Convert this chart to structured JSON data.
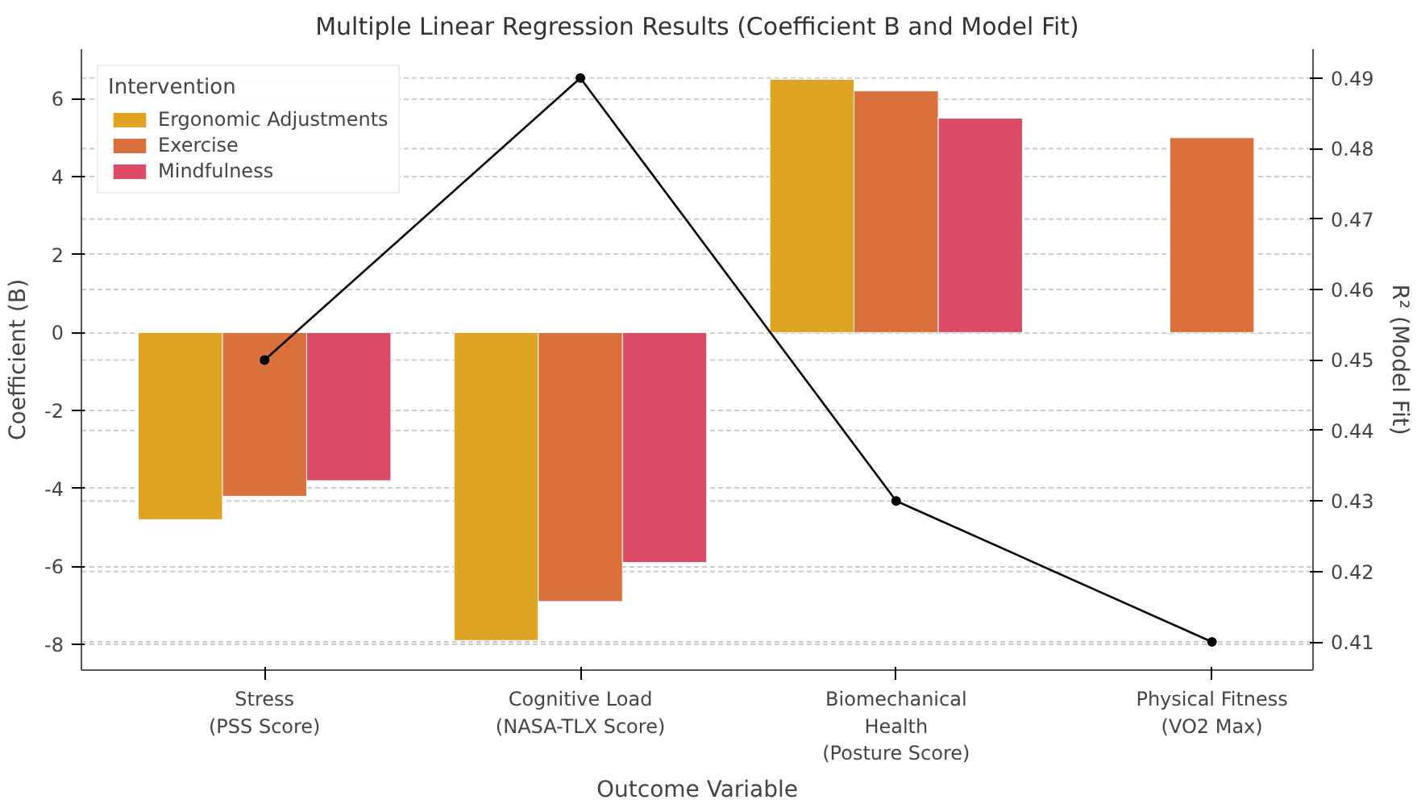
{
  "chart_data": {
    "type": "bar",
    "title": "Multiple Linear Regression Results (Coefficient B and Model Fit)",
    "xlabel": "Outcome Variable",
    "ylabel": "Coefficient (B)",
    "y2label": "R² (Model Fit)",
    "legend_title": "Intervention",
    "categories": [
      "Stress\n(PSS Score)",
      "Cognitive Load\n(NASA-TLX Score)",
      "Biomechanical\nHealth\n(Posture Score)",
      "Physical Fitness\n(VO2 Max)"
    ],
    "series": [
      {
        "name": "Ergonomic Adjustments",
        "color": "#dfa424",
        "values": [
          -4.8,
          -7.9,
          6.5,
          null
        ]
      },
      {
        "name": "Exercise",
        "color": "#da703b",
        "values": [
          -4.2,
          -6.9,
          6.2,
          5.0
        ]
      },
      {
        "name": "Mindfulness",
        "color": "#dc4b67",
        "values": [
          -3.8,
          -5.9,
          5.5,
          null
        ]
      },
      {
        "type": "line",
        "axis": "y2",
        "color": "#000000",
        "marker": "circle",
        "values": [
          0.45,
          0.49,
          0.43,
          0.41
        ]
      }
    ],
    "ylim": [
      -8.66,
      7.27
    ],
    "yticks": [
      -8,
      -6,
      -4,
      -2,
      0,
      2,
      4,
      6
    ],
    "y2lim": [
      0.406,
      0.4941
    ],
    "y2ticks": [
      0.41,
      0.42,
      0.43,
      0.44,
      0.45,
      0.46,
      0.47,
      0.48,
      0.49
    ],
    "grid": "y",
    "legend": "top left"
  }
}
